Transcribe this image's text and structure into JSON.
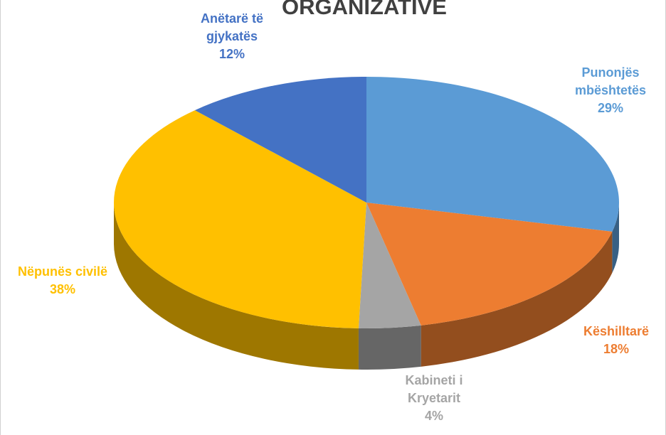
{
  "chart_data": {
    "type": "pie",
    "title": "ORGANIZATIVE",
    "categories": [
      "Punonjës mbështetës",
      "Këshilltarë",
      "Kabineti i Kryetarit",
      "Nëpunës civilë",
      "Anëtarë të gjykatës"
    ],
    "values": [
      29,
      18,
      4,
      38,
      12
    ],
    "value_labels": [
      "29%",
      "18%",
      "4%",
      "38%",
      "12%"
    ],
    "colors": [
      "#5b9bd5",
      "#ed7d31",
      "#a5a5a5",
      "#ffc000",
      "#4472c4"
    ]
  }
}
